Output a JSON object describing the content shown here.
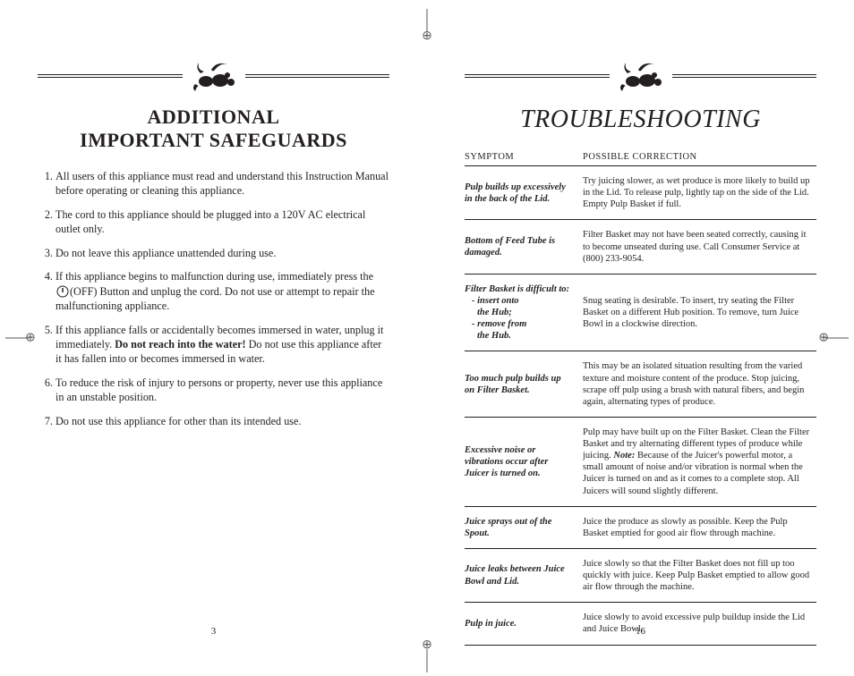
{
  "left": {
    "heading_line1": "ADDITIONAL",
    "heading_line2": "IMPORTANT SAFEGUARDS",
    "items": [
      "All users of this appliance must read and understand this Instruction Manual before operating or cleaning this appliance.",
      "The cord to this appliance should be plugged into a 120V AC electrical outlet only.",
      "Do not leave this appliance unattended during use.",
      "If this appliance begins to malfunction during use, immediately press the ⓘ(OFF) Button and unplug the cord. Do not use or attempt to repair the malfunctioning appliance.",
      "If this appliance falls or accidentally becomes immersed in water, unplug it immediately. <b>Do not reach into the water!</b> Do not use this appliance after it has fallen into or becomes immersed in water.",
      "To reduce the risk of injury to persons or property, never use this appliance in an unstable position.",
      "Do not use this appliance for other than its intended use."
    ],
    "page_number": "3"
  },
  "right": {
    "heading": "TROUBLESHOOTING",
    "col_symptom": "SYMPTOM",
    "col_correction": "POSSIBLE CORRECTION",
    "rows": [
      {
        "symptom": "Pulp builds up excessively in the back of the Lid.",
        "correction": "Try juicing slower, as wet produce is more likely to build up in the Lid. To release pulp, lightly tap on the side of the Lid. Empty Pulp Basket if full."
      },
      {
        "symptom": "Bottom of Feed Tube is damaged.",
        "correction": "Filter Basket may not have been seated correctly, causing it to become unseated during use. Call Consumer Service at (800) 233-9054."
      },
      {
        "symptom_html": "Filter Basket is difficult to:<span class=\"sub\">- insert onto</span><span class=\"sub2\">the Hub;</span><span class=\"sub\">- remove from</span><span class=\"sub2\">the Hub.</span>",
        "correction": "Snug seating is desirable. To insert, try seating the Filter Basket on a different Hub position. To remove, turn Juice Bowl in a clockwise direction."
      },
      {
        "symptom": "Too much pulp builds up on Filter Basket.",
        "correction": "This may be an isolated situation resulting from the varied texture and moisture content of the produce. Stop juicing, scrape off pulp using a brush with natural fibers, and begin again, alternating types of produce."
      },
      {
        "symptom": "Excessive noise or vibrations occur after Juicer is turned on.",
        "correction": "Pulp may have built up on the Filter Basket. Clean the Filter Basket and try alternating different types of produce while juicing. <span class=\"note\">Note:</span> Because of the Juicer's powerful motor, a small amount of noise and/or vibration is normal when the Juicer is turned on and as it comes to a complete stop. All Juicers will sound slightly different."
      },
      {
        "symptom": "Juice sprays out of the Spout.",
        "correction": "Juice the produce as slowly as possible. Keep the Pulp Basket emptied for good air flow through machine."
      },
      {
        "symptom": "Juice leaks between Juice Bowl and Lid.",
        "correction": "Juice slowly so that the Filter Basket does not fill up too quickly with juice. Keep Pulp Basket emptied to allow good air flow through the machine."
      },
      {
        "symptom": "Pulp in juice.",
        "correction": "Juice slowly to avoid excessive pulp buildup inside the Lid and Juice Bowl."
      }
    ],
    "page_number": "16"
  },
  "style": {
    "text_color": "#231f20",
    "bg_color": "#ffffff"
  }
}
